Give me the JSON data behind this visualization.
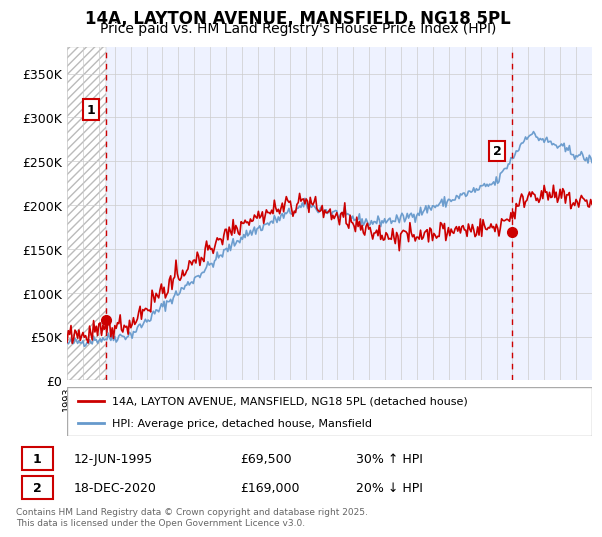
{
  "title": "14A, LAYTON AVENUE, MANSFIELD, NG18 5PL",
  "subtitle": "Price paid vs. HM Land Registry's House Price Index (HPI)",
  "ylim": [
    0,
    380000
  ],
  "yticks": [
    0,
    50000,
    100000,
    150000,
    200000,
    250000,
    300000,
    350000
  ],
  "ytick_labels": [
    "£0",
    "£50K",
    "£100K",
    "£150K",
    "£200K",
    "£250K",
    "£300K",
    "£350K"
  ],
  "x_start_year": 1993,
  "x_end_year": 2025,
  "marker1_year": 1995.44,
  "marker1_price": 69500,
  "marker1_date": "12-JUN-1995",
  "marker1_amount": "£69,500",
  "marker1_hpi": "30% ↑ HPI",
  "marker2_year": 2020.96,
  "marker2_price": 169000,
  "marker2_date": "18-DEC-2020",
  "marker2_amount": "£169,000",
  "marker2_hpi": "20% ↓ HPI",
  "red_line_color": "#cc0000",
  "blue_line_color": "#6699cc",
  "grid_color": "#cccccc",
  "bg_color": "#eef2ff",
  "legend_red_label": "14A, LAYTON AVENUE, MANSFIELD, NG18 5PL (detached house)",
  "legend_blue_label": "HPI: Average price, detached house, Mansfield",
  "footnote": "Contains HM Land Registry data © Crown copyright and database right 2025.\nThis data is licensed under the Open Government Licence v3.0.",
  "title_fontsize": 12,
  "subtitle_fontsize": 10
}
